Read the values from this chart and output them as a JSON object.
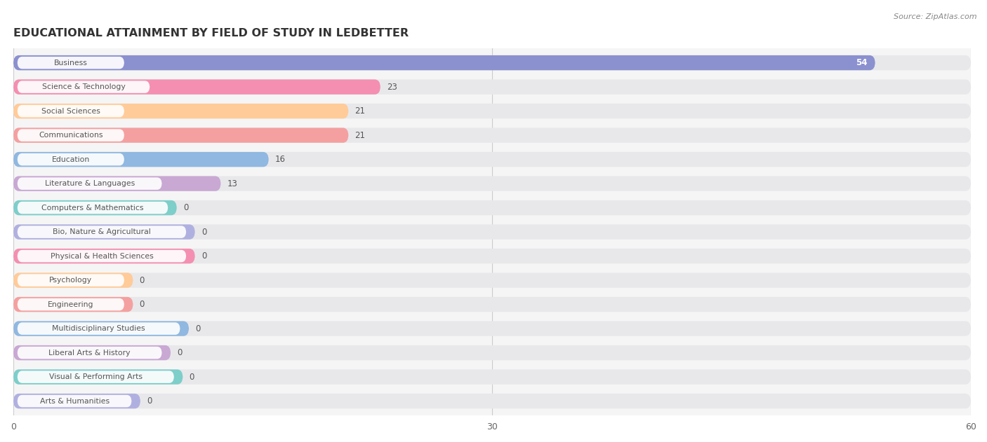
{
  "title": "EDUCATIONAL ATTAINMENT BY FIELD OF STUDY IN LEDBETTER",
  "source": "Source: ZipAtlas.com",
  "categories": [
    "Business",
    "Science & Technology",
    "Social Sciences",
    "Communications",
    "Education",
    "Literature & Languages",
    "Computers & Mathematics",
    "Bio, Nature & Agricultural",
    "Physical & Health Sciences",
    "Psychology",
    "Engineering",
    "Multidisciplinary Studies",
    "Liberal Arts & History",
    "Visual & Performing Arts",
    "Arts & Humanities"
  ],
  "values": [
    54,
    23,
    21,
    21,
    16,
    13,
    0,
    0,
    0,
    0,
    0,
    0,
    0,
    0,
    0
  ],
  "colors": [
    "#8b90cf",
    "#f48fb1",
    "#ffcb99",
    "#f4a0a0",
    "#90b8e0",
    "#c9a8d4",
    "#7ececa",
    "#b0b0e0",
    "#f48fb1",
    "#ffcb99",
    "#f4a0a0",
    "#90b8e0",
    "#c9a8d4",
    "#7ececa",
    "#b0b0e0"
  ],
  "xlim": [
    0,
    60
  ],
  "xticks": [
    0,
    30,
    60
  ],
  "bar_bg_color": "#e8e8eb",
  "label_pill_color": "#ffffff",
  "value_54_color": "#ffffff",
  "value_other_color": "#555555",
  "grid_color": "#cccccc",
  "title_color": "#333333",
  "source_color": "#888888",
  "label_text_color": "#555555"
}
